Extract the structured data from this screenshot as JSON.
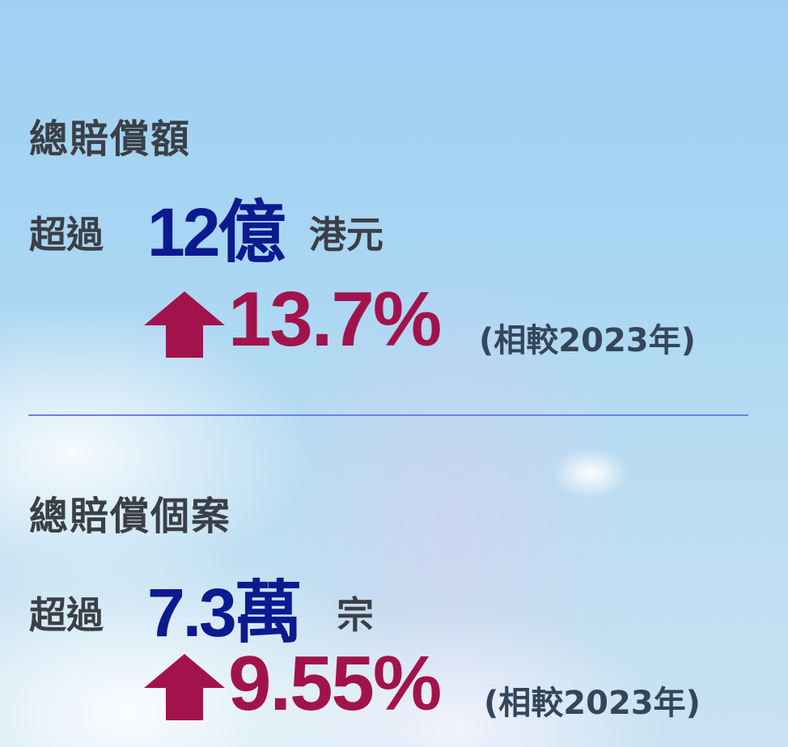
{
  "blocks": [
    {
      "title": "總賠償額",
      "prefix": "超過",
      "amount": "12億",
      "unit": "港元",
      "change": "13.7%",
      "comparison": "(相較2023年)"
    },
    {
      "title": "總賠償個案",
      "prefix": "超過",
      "amount": "7.3萬",
      "unit": "宗",
      "change": "9.55%",
      "comparison": "(相較2023年)"
    }
  ]
}
